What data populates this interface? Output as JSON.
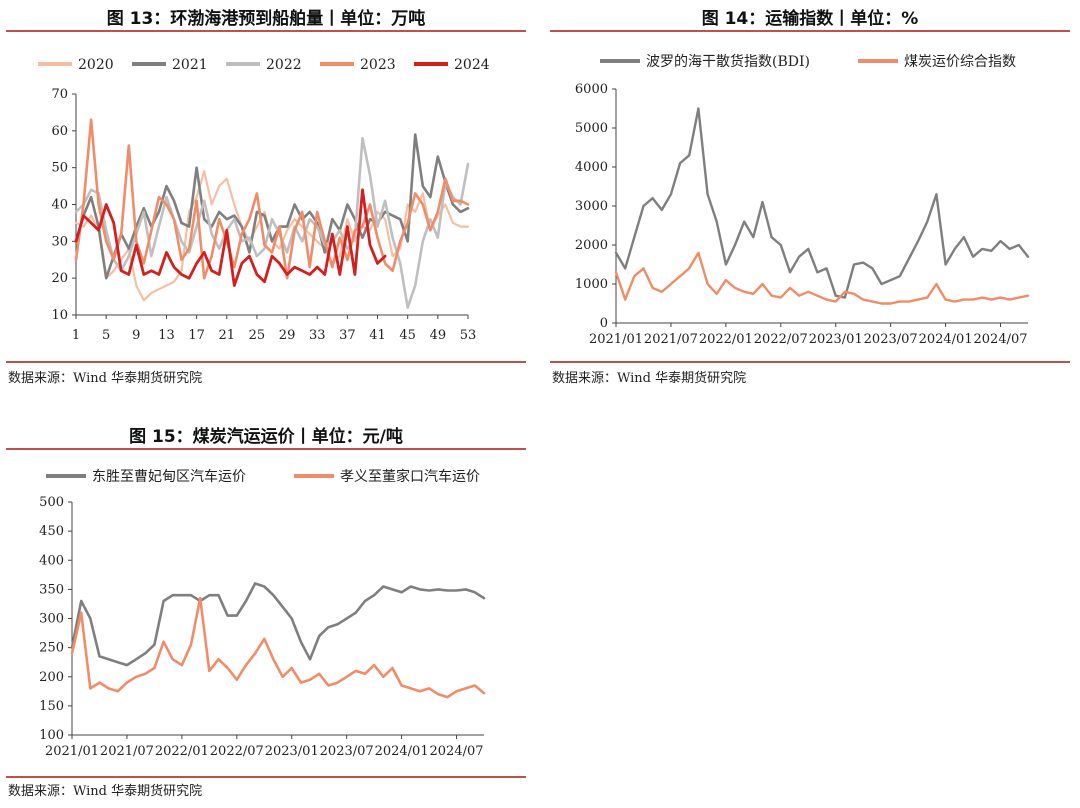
{
  "panels": {
    "p13": {
      "title": "图 13：环渤海港预到船舶量丨单位：万吨",
      "source": "数据来源：Wind 华泰期货研究院"
    },
    "p14": {
      "title": "图 14：运输指数丨单位：%",
      "source": "数据来源：Wind 华泰期货研究院"
    },
    "p15": {
      "title": "图 15：煤炭汽运运价丨单位：元/吨",
      "source": "数据来源：Wind 华泰期货研究院"
    }
  },
  "chart_data": [
    {
      "id": "p13",
      "type": "line",
      "title": "图 13：环渤海港预到船舶量丨单位：万吨",
      "xlabel": "",
      "ylabel": "",
      "ylim": [
        10,
        70
      ],
      "yticks": [
        10,
        20,
        30,
        40,
        50,
        60,
        70
      ],
      "xlim": [
        1,
        53
      ],
      "xticks": [
        1,
        5,
        9,
        13,
        17,
        21,
        25,
        29,
        33,
        37,
        41,
        45,
        49,
        53
      ],
      "legend_position": "top",
      "series": [
        {
          "name": "2020",
          "color": "#f6bfa3",
          "width": 2.2,
          "x": [
            1,
            2,
            3,
            4,
            5,
            6,
            7,
            8,
            9,
            10,
            11,
            12,
            13,
            14,
            15,
            16,
            17,
            18,
            19,
            20,
            21,
            22,
            23,
            24,
            25,
            26,
            27,
            28,
            29,
            30,
            31,
            32,
            33,
            34,
            35,
            36,
            37,
            38,
            39,
            40,
            41,
            42,
            43,
            44,
            45,
            46,
            47,
            48,
            49,
            50,
            51,
            52,
            53
          ],
          "values": [
            35,
            34,
            37,
            33,
            20,
            22,
            25,
            28,
            18,
            14,
            16,
            17,
            18,
            19,
            22,
            38,
            42,
            49,
            40,
            45,
            47,
            40,
            34,
            30,
            34,
            38,
            30,
            28,
            33,
            36,
            34,
            32,
            30,
            28,
            24,
            26,
            36,
            30,
            34,
            33,
            38,
            36,
            26,
            28,
            40,
            38,
            43,
            33,
            37,
            40,
            35,
            34,
            34
          ]
        },
        {
          "name": "2021",
          "color": "#7f7f7f",
          "width": 2.6,
          "x": [
            1,
            2,
            3,
            4,
            5,
            6,
            7,
            8,
            9,
            10,
            11,
            12,
            13,
            14,
            15,
            16,
            17,
            18,
            19,
            20,
            21,
            22,
            23,
            24,
            25,
            26,
            27,
            28,
            29,
            30,
            31,
            32,
            33,
            34,
            35,
            36,
            37,
            38,
            39,
            40,
            41,
            42,
            43,
            44,
            45,
            46,
            47,
            48,
            49,
            50,
            51,
            52,
            53
          ],
          "values": [
            30,
            37,
            42,
            34,
            20,
            26,
            32,
            28,
            34,
            39,
            34,
            38,
            45,
            41,
            35,
            34,
            50,
            36,
            34,
            38,
            36,
            37,
            34,
            27,
            38,
            37,
            30,
            34,
            34,
            40,
            36,
            38,
            35,
            27,
            36,
            33,
            40,
            36,
            31,
            36,
            35,
            38,
            37,
            36,
            30,
            59,
            45,
            42,
            53,
            46,
            40,
            38,
            39
          ]
        },
        {
          "name": "2022",
          "color": "#bfbfbf",
          "width": 2.6,
          "x": [
            1,
            2,
            3,
            4,
            5,
            6,
            7,
            8,
            9,
            10,
            11,
            12,
            13,
            14,
            15,
            16,
            17,
            18,
            19,
            20,
            21,
            22,
            23,
            24,
            25,
            26,
            27,
            28,
            29,
            30,
            31,
            32,
            33,
            34,
            35,
            36,
            37,
            38,
            39,
            40,
            41,
            42,
            43,
            44,
            45,
            46,
            47,
            48,
            49,
            50,
            51,
            52,
            53
          ],
          "values": [
            38,
            40,
            44,
            43,
            33,
            25,
            22,
            26,
            32,
            38,
            26,
            34,
            42,
            36,
            30,
            27,
            34,
            41,
            32,
            28,
            33,
            36,
            30,
            31,
            26,
            28,
            36,
            32,
            27,
            34,
            30,
            36,
            34,
            29,
            30,
            33,
            28,
            31,
            58,
            48,
            34,
            41,
            31,
            24,
            12,
            18,
            30,
            36,
            31,
            46,
            42,
            40,
            51
          ]
        },
        {
          "name": "2023",
          "color": "#f08c68",
          "width": 2.6,
          "x": [
            1,
            2,
            3,
            4,
            5,
            6,
            7,
            8,
            9,
            10,
            11,
            12,
            13,
            14,
            15,
            16,
            17,
            18,
            19,
            20,
            21,
            22,
            23,
            24,
            25,
            26,
            27,
            28,
            29,
            30,
            31,
            32,
            33,
            34,
            35,
            36,
            37,
            38,
            39,
            40,
            41,
            42,
            43,
            44,
            45,
            46,
            47,
            48,
            49,
            50,
            51,
            52,
            53
          ],
          "values": [
            25,
            40,
            63,
            40,
            30,
            25,
            32,
            56,
            30,
            24,
            33,
            42,
            40,
            36,
            25,
            28,
            41,
            20,
            26,
            36,
            30,
            23,
            32,
            36,
            43,
            29,
            27,
            34,
            20,
            33,
            38,
            23,
            38,
            30,
            23,
            31,
            25,
            33,
            34,
            40,
            31,
            24,
            22,
            30,
            35,
            43,
            40,
            33,
            38,
            47,
            41,
            41,
            40
          ]
        },
        {
          "name": "2024",
          "color": "#d41f1f",
          "width": 2.8,
          "x": [
            1,
            2,
            3,
            4,
            5,
            6,
            7,
            8,
            9,
            10,
            11,
            12,
            13,
            14,
            15,
            16,
            17,
            18,
            19,
            20,
            21,
            22,
            23,
            24,
            25,
            26,
            27,
            28,
            29,
            30,
            31,
            32,
            33,
            34,
            35,
            36,
            37,
            38,
            39,
            40,
            41,
            42
          ],
          "values": [
            30,
            37,
            35,
            33,
            40,
            35,
            22,
            21,
            29,
            21,
            22,
            21,
            27,
            23,
            21,
            20,
            24,
            27,
            22,
            21,
            33,
            18,
            24,
            26,
            21,
            19,
            26,
            24,
            21,
            23,
            22,
            21,
            23,
            21,
            32,
            21,
            34,
            21,
            44,
            29,
            24,
            26
          ]
        }
      ]
    },
    {
      "id": "p14",
      "type": "line",
      "title": "图 14：运输指数丨单位：%",
      "xlabel": "",
      "ylabel": "",
      "ylim": [
        0,
        6000
      ],
      "yticks": [
        0,
        1000,
        2000,
        3000,
        4000,
        5000,
        6000
      ],
      "xlim": [
        "2021-01",
        "2024-10"
      ],
      "xticks": [
        "2021/01",
        "2021/07",
        "2022/01",
        "2022/07",
        "2023/01",
        "2023/07",
        "2024/01",
        "2024/07"
      ],
      "legend_position": "top",
      "series": [
        {
          "name": "波罗的海干散货指数(BDI)",
          "color": "#7f7f7f",
          "width": 2.4,
          "x": [
            "2021-01",
            "2021-02",
            "2021-03",
            "2021-04",
            "2021-05",
            "2021-06",
            "2021-07",
            "2021-08",
            "2021-09",
            "2021-10",
            "2021-11",
            "2021-12",
            "2022-01",
            "2022-02",
            "2022-03",
            "2022-04",
            "2022-05",
            "2022-06",
            "2022-07",
            "2022-08",
            "2022-09",
            "2022-10",
            "2022-11",
            "2022-12",
            "2023-01",
            "2023-02",
            "2023-03",
            "2023-04",
            "2023-05",
            "2023-06",
            "2023-07",
            "2023-08",
            "2023-09",
            "2023-10",
            "2023-11",
            "2023-12",
            "2024-01",
            "2024-02",
            "2024-03",
            "2024-04",
            "2024-05",
            "2024-06",
            "2024-07",
            "2024-08",
            "2024-09",
            "2024-10"
          ],
          "values": [
            1800,
            1400,
            2200,
            3000,
            3200,
            2900,
            3300,
            4100,
            4300,
            5500,
            3300,
            2600,
            1500,
            2000,
            2600,
            2200,
            3100,
            2200,
            2000,
            1300,
            1700,
            1900,
            1300,
            1400,
            700,
            650,
            1500,
            1550,
            1400,
            1000,
            1100,
            1200,
            1650,
            2100,
            2600,
            3300,
            1500,
            1900,
            2200,
            1700,
            1900,
            1850,
            2100,
            1900,
            2000,
            1700
          ]
        },
        {
          "name": "煤炭运价综合指数",
          "color": "#f08c68",
          "width": 2.4,
          "x": [
            "2021-01",
            "2021-02",
            "2021-03",
            "2021-04",
            "2021-05",
            "2021-06",
            "2021-07",
            "2021-08",
            "2021-09",
            "2021-10",
            "2021-11",
            "2021-12",
            "2022-01",
            "2022-02",
            "2022-03",
            "2022-04",
            "2022-05",
            "2022-06",
            "2022-07",
            "2022-08",
            "2022-09",
            "2022-10",
            "2022-11",
            "2022-12",
            "2023-01",
            "2023-02",
            "2023-03",
            "2023-04",
            "2023-05",
            "2023-06",
            "2023-07",
            "2023-08",
            "2023-09",
            "2023-10",
            "2023-11",
            "2023-12",
            "2024-01",
            "2024-02",
            "2024-03",
            "2024-04",
            "2024-05",
            "2024-06",
            "2024-07",
            "2024-08",
            "2024-09",
            "2024-10"
          ],
          "values": [
            1300,
            600,
            1200,
            1400,
            900,
            800,
            1000,
            1200,
            1400,
            1800,
            1000,
            750,
            1100,
            900,
            800,
            750,
            1000,
            700,
            650,
            900,
            700,
            800,
            700,
            600,
            550,
            800,
            750,
            600,
            550,
            500,
            500,
            550,
            550,
            600,
            650,
            1000,
            600,
            550,
            600,
            600,
            650,
            600,
            650,
            600,
            650,
            700
          ]
        }
      ]
    },
    {
      "id": "p15",
      "type": "line",
      "title": "图 15：煤炭汽运运价丨单位：元/吨",
      "xlabel": "",
      "ylabel": "",
      "ylim": [
        100,
        500
      ],
      "yticks": [
        100,
        150,
        200,
        250,
        300,
        350,
        400,
        450,
        500
      ],
      "xlim": [
        "2021-01",
        "2024-10"
      ],
      "xticks": [
        "2021/01",
        "2021/07",
        "2022/01",
        "2022/07",
        "2023/01",
        "2023/07",
        "2024/01",
        "2024/07"
      ],
      "legend_position": "top",
      "series": [
        {
          "name": "东胜至曹妃甸区汽车运价",
          "color": "#7f7f7f",
          "width": 2.6,
          "x": [
            "2021-01",
            "2021-02",
            "2021-03",
            "2021-04",
            "2021-05",
            "2021-06",
            "2021-07",
            "2021-08",
            "2021-09",
            "2021-10",
            "2021-11",
            "2021-12",
            "2022-01",
            "2022-02",
            "2022-03",
            "2022-04",
            "2022-05",
            "2022-06",
            "2022-07",
            "2022-08",
            "2022-09",
            "2022-10",
            "2022-11",
            "2022-12",
            "2023-01",
            "2023-02",
            "2023-03",
            "2023-04",
            "2023-05",
            "2023-06",
            "2023-07",
            "2023-08",
            "2023-09",
            "2023-10",
            "2023-11",
            "2023-12",
            "2024-01",
            "2024-02",
            "2024-03",
            "2024-04",
            "2024-05",
            "2024-06",
            "2024-07",
            "2024-08",
            "2024-09",
            "2024-10"
          ],
          "values": [
            250,
            330,
            300,
            235,
            230,
            225,
            220,
            230,
            240,
            255,
            330,
            340,
            340,
            340,
            330,
            340,
            340,
            305,
            305,
            330,
            360,
            355,
            340,
            320,
            300,
            260,
            230,
            270,
            285,
            290,
            300,
            310,
            330,
            340,
            355,
            350,
            345,
            355,
            350,
            348,
            350,
            348,
            348,
            350,
            345,
            335
          ]
        },
        {
          "name": "孝义至董家口汽车运价",
          "color": "#f08c68",
          "width": 2.6,
          "x": [
            "2021-01",
            "2021-02",
            "2021-03",
            "2021-04",
            "2021-05",
            "2021-06",
            "2021-07",
            "2021-08",
            "2021-09",
            "2021-10",
            "2021-11",
            "2021-12",
            "2022-01",
            "2022-02",
            "2022-03",
            "2022-04",
            "2022-05",
            "2022-06",
            "2022-07",
            "2022-08",
            "2022-09",
            "2022-10",
            "2022-11",
            "2022-12",
            "2023-01",
            "2023-02",
            "2023-03",
            "2023-04",
            "2023-05",
            "2023-06",
            "2023-07",
            "2023-08",
            "2023-09",
            "2023-10",
            "2023-11",
            "2023-12",
            "2024-01",
            "2024-02",
            "2024-03",
            "2024-04",
            "2024-05",
            "2024-06",
            "2024-07",
            "2024-08",
            "2024-09",
            "2024-10"
          ],
          "values": [
            240,
            310,
            180,
            190,
            180,
            175,
            190,
            200,
            205,
            215,
            260,
            230,
            220,
            255,
            335,
            210,
            230,
            215,
            195,
            220,
            240,
            265,
            230,
            200,
            215,
            190,
            195,
            205,
            185,
            190,
            200,
            210,
            205,
            220,
            200,
            215,
            185,
            180,
            175,
            180,
            170,
            165,
            175,
            180,
            185,
            172
          ]
        }
      ]
    }
  ]
}
